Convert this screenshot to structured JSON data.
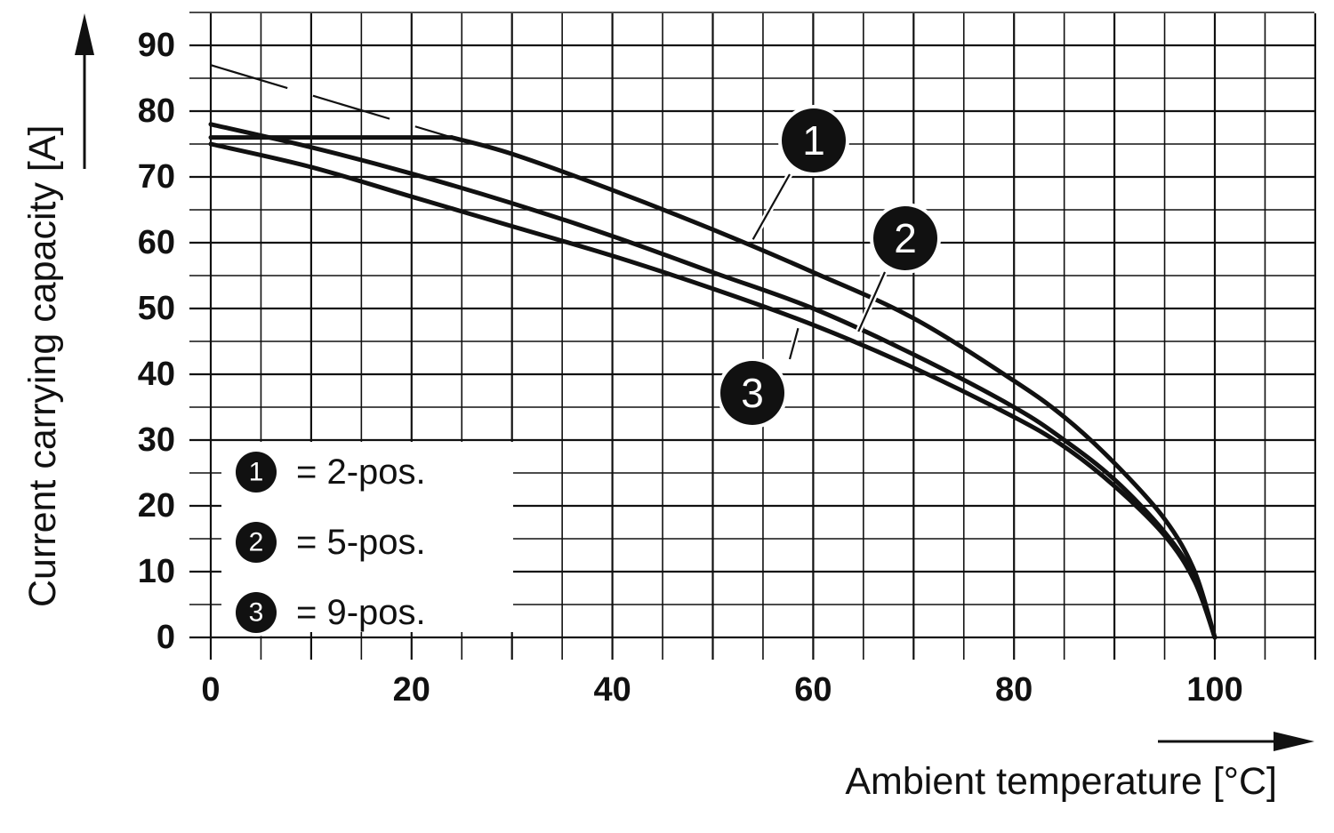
{
  "chart_data": {
    "type": "line",
    "xlabel": "Ambient temperature [°C]",
    "ylabel": "Current carrying capacity [A]",
    "xlim": [
      0,
      110
    ],
    "ylim": [
      0,
      95
    ],
    "x_ticks": [
      0,
      20,
      40,
      60,
      80,
      100
    ],
    "y_ticks": [
      0,
      10,
      20,
      30,
      40,
      50,
      60,
      70,
      80,
      90
    ],
    "grid": true,
    "series": [
      {
        "marker": "1",
        "legend_label": "= 2-pos.",
        "points": [
          [
            0,
            76
          ],
          [
            24,
            76
          ],
          [
            30,
            73.5
          ],
          [
            40,
            68
          ],
          [
            50,
            62
          ],
          [
            60,
            55.5
          ],
          [
            70,
            48.5
          ],
          [
            80,
            39
          ],
          [
            85,
            33.5
          ],
          [
            90,
            26.5
          ],
          [
            95,
            18
          ],
          [
            98,
            10
          ],
          [
            100,
            0
          ]
        ],
        "dashed_extension": [
          [
            0,
            87
          ],
          [
            24,
            76
          ]
        ]
      },
      {
        "marker": "2",
        "legend_label": "= 5-pos.",
        "points": [
          [
            0,
            78
          ],
          [
            10,
            74.5
          ],
          [
            20,
            70.5
          ],
          [
            30,
            66
          ],
          [
            40,
            61
          ],
          [
            50,
            55.5
          ],
          [
            60,
            50
          ],
          [
            70,
            43
          ],
          [
            80,
            35
          ],
          [
            85,
            30
          ],
          [
            90,
            24
          ],
          [
            95,
            16
          ],
          [
            98,
            9
          ],
          [
            100,
            0
          ]
        ]
      },
      {
        "marker": "3",
        "legend_label": "= 9-pos.",
        "points": [
          [
            0,
            75
          ],
          [
            10,
            71.5
          ],
          [
            20,
            67
          ],
          [
            30,
            62.5
          ],
          [
            40,
            58
          ],
          [
            50,
            53
          ],
          [
            60,
            47.5
          ],
          [
            70,
            41
          ],
          [
            80,
            33.5
          ],
          [
            85,
            29
          ],
          [
            90,
            23
          ],
          [
            95,
            15.5
          ],
          [
            98,
            8.5
          ],
          [
            100,
            0
          ]
        ]
      }
    ],
    "legend": {
      "placement": "bottom-left",
      "entries": [
        {
          "marker": "1",
          "label": "= 2-pos."
        },
        {
          "marker": "2",
          "label": "= 5-pos."
        },
        {
          "marker": "3",
          "label": "= 9-pos."
        }
      ]
    },
    "annotations": [
      {
        "marker": "1",
        "points_to": [
          54,
          60.5
        ]
      },
      {
        "marker": "2",
        "points_to": [
          64.5,
          46.5
        ]
      },
      {
        "marker": "3",
        "points_to": [
          58.5,
          47
        ]
      }
    ]
  },
  "colors": {
    "line": "#111111",
    "grid": "#111111",
    "badge_fill": "#111111",
    "badge_text": "#ffffff",
    "background": "#ffffff"
  }
}
